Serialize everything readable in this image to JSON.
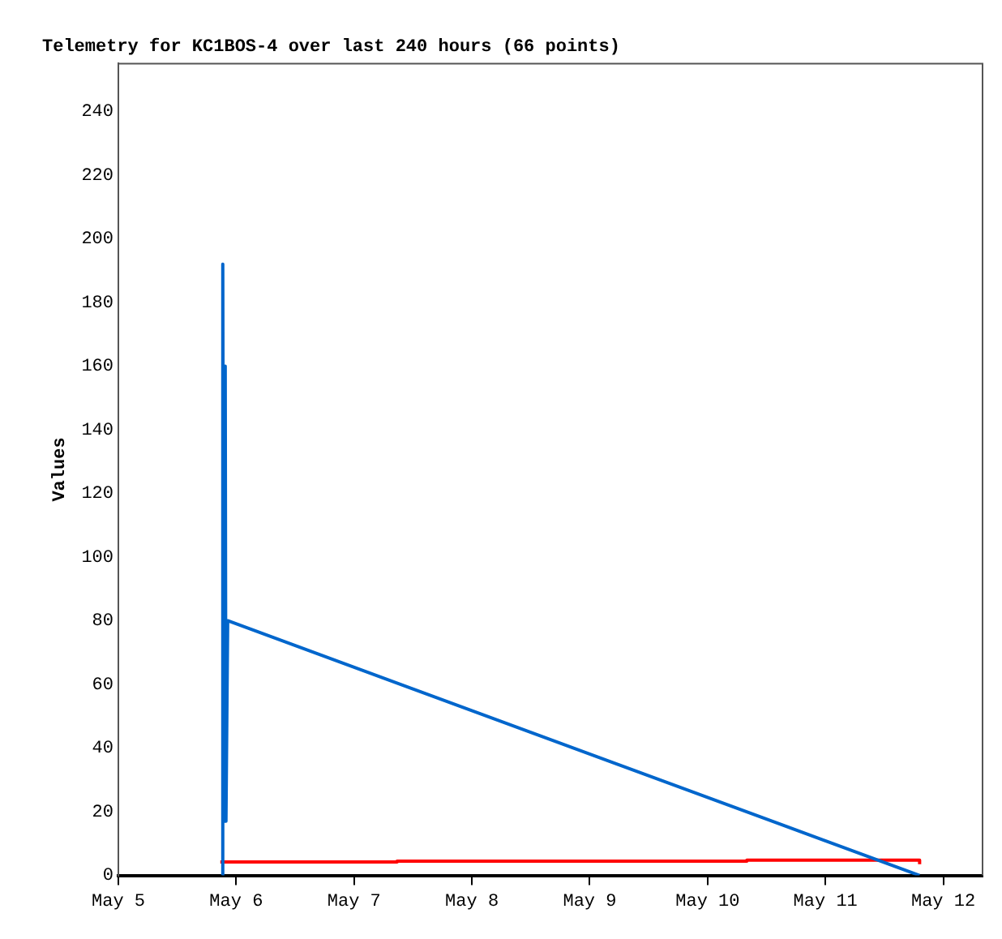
{
  "chart_data": {
    "type": "line",
    "title": "Telemetry for KC1BOS-4 over last 240 hours (66 points)",
    "ylabel": "Values",
    "xlim": [
      "--05-05",
      "--05-12T08:00"
    ],
    "xticks": [
      {
        "value": "--05-05",
        "label": "May 5"
      },
      {
        "value": "--05-06",
        "label": "May 6"
      },
      {
        "value": "--05-07",
        "label": "May 7"
      },
      {
        "value": "--05-08",
        "label": "May 8"
      },
      {
        "value": "--05-09",
        "label": "May 9"
      },
      {
        "value": "--05-10",
        "label": "May 10"
      },
      {
        "value": "--05-11",
        "label": "May 11"
      },
      {
        "value": "--05-12",
        "label": "May 12"
      }
    ],
    "ylim": [
      0,
      255
    ],
    "yticks": [
      0,
      20,
      40,
      60,
      80,
      100,
      120,
      140,
      160,
      180,
      200,
      220,
      240
    ],
    "grid": false,
    "legend": false,
    "series": [
      {
        "type": "line",
        "color": "#0066cc",
        "x": [
          "--05-05T21:10",
          "--05-05T21:16",
          "--05-05T21:30",
          "--05-05T21:46",
          "--05-05T21:55",
          "--05-05T22:16",
          "--05-11T19:10"
        ],
        "values": [
          0,
          192,
          17,
          160,
          17,
          80,
          0
        ]
      },
      {
        "type": "step",
        "color": "#ff0000",
        "x": [
          "--05-05T20:46",
          "--05-07T08:46",
          "--05-10T08:00",
          "--05-11T19:10",
          "--05-11T19:11"
        ],
        "values": [
          4.2,
          4.5,
          4.8,
          4.8,
          3.5
        ]
      }
    ]
  }
}
